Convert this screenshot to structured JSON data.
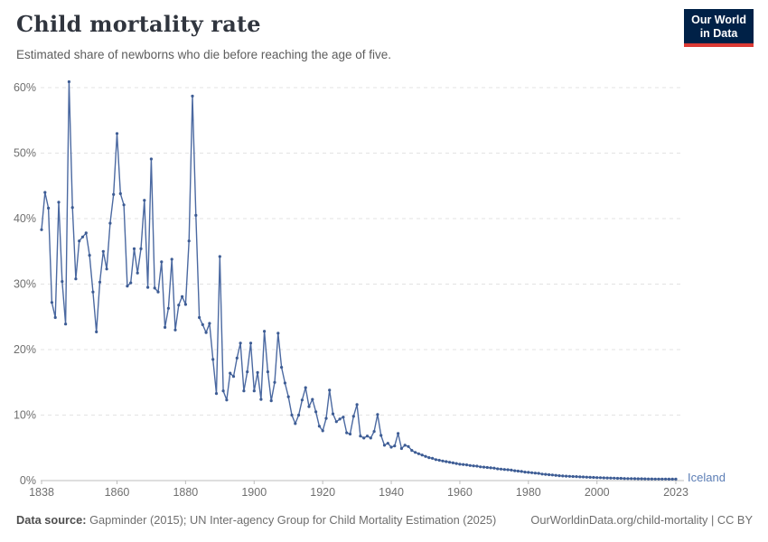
{
  "header": {
    "title": "Child mortality rate",
    "subtitle": "Estimated share of newborns who die before reaching the age of five."
  },
  "logo": {
    "line1": "Our World",
    "line2": "in Data"
  },
  "chart_data": {
    "type": "line",
    "title": "Child mortality rate",
    "xlabel": "",
    "ylabel": "share of newborns dying before age five (%)",
    "xlim": [
      1838,
      2023
    ],
    "ylim": [
      0,
      62
    ],
    "grid": "horizontal-dashed",
    "legend_position": "line-end-label",
    "y_ticks": [
      {
        "value": 0,
        "label": "0%"
      },
      {
        "value": 10,
        "label": "10%"
      },
      {
        "value": 20,
        "label": "20%"
      },
      {
        "value": 30,
        "label": "30%"
      },
      {
        "value": 40,
        "label": "40%"
      },
      {
        "value": 50,
        "label": "50%"
      },
      {
        "value": 60,
        "label": "60%"
      }
    ],
    "x_ticks": [
      {
        "value": 1838,
        "label": "1838"
      },
      {
        "value": 1860,
        "label": "1860"
      },
      {
        "value": 1880,
        "label": "1880"
      },
      {
        "value": 1900,
        "label": "1900"
      },
      {
        "value": 1920,
        "label": "1920"
      },
      {
        "value": 1940,
        "label": "1940"
      },
      {
        "value": 1960,
        "label": "1960"
      },
      {
        "value": 1980,
        "label": "1980"
      },
      {
        "value": 2000,
        "label": "2000"
      },
      {
        "value": 2023,
        "label": "2023"
      }
    ],
    "series": [
      {
        "name": "Iceland",
        "unit": "%",
        "color": "#4b69a1",
        "point_color": "#3d5c94",
        "start_year": 1838,
        "end_year": 2023,
        "values": [
          38.3,
          44.0,
          41.6,
          27.2,
          24.9,
          42.5,
          30.4,
          23.9,
          60.9,
          41.7,
          30.8,
          36.6,
          37.2,
          37.8,
          34.4,
          28.8,
          22.7,
          30.3,
          35.0,
          32.3,
          39.3,
          43.7,
          53.0,
          43.8,
          42.1,
          29.7,
          30.2,
          35.4,
          31.7,
          35.4,
          42.8,
          29.5,
          49.1,
          29.4,
          28.8,
          33.4,
          23.4,
          26.3,
          33.8,
          23.0,
          26.8,
          28.1,
          26.9,
          36.6,
          58.7,
          40.5,
          24.9,
          23.8,
          22.6,
          24.0,
          18.5,
          13.3,
          34.2,
          13.7,
          12.3,
          16.4,
          15.9,
          18.7,
          21.0,
          13.7,
          16.6,
          21.0,
          13.7,
          16.5,
          12.4,
          22.8,
          16.6,
          12.2,
          15.0,
          22.5,
          17.3,
          14.9,
          12.8,
          10.0,
          8.7,
          10.0,
          12.3,
          14.2,
          11.3,
          12.4,
          10.5,
          8.3,
          7.6,
          9.5,
          13.8,
          10.2,
          9.0,
          9.4,
          9.7,
          7.3,
          7.1,
          9.8,
          11.6,
          6.8,
          6.5,
          6.8,
          6.5,
          7.5,
          10.1,
          6.9,
          5.4,
          5.7,
          5.1,
          5.3,
          7.2,
          4.9,
          5.4,
          5.2,
          4.6,
          4.3,
          4.1,
          3.9,
          3.7,
          3.5,
          3.4,
          3.2,
          3.1,
          3.0,
          2.9,
          2.8,
          2.7,
          2.6,
          2.5,
          2.45,
          2.4,
          2.3,
          2.25,
          2.2,
          2.1,
          2.05,
          2.0,
          1.95,
          1.9,
          1.8,
          1.75,
          1.7,
          1.65,
          1.6,
          1.5,
          1.45,
          1.4,
          1.3,
          1.25,
          1.2,
          1.15,
          1.1,
          1.0,
          0.95,
          0.9,
          0.85,
          0.8,
          0.75,
          0.7,
          0.68,
          0.65,
          0.62,
          0.6,
          0.57,
          0.55,
          0.52,
          0.5,
          0.48,
          0.46,
          0.44,
          0.42,
          0.4,
          0.38,
          0.37,
          0.35,
          0.34,
          0.32,
          0.31,
          0.3,
          0.29,
          0.28,
          0.27,
          0.26,
          0.25,
          0.25,
          0.24,
          0.24,
          0.23,
          0.23,
          0.22,
          0.22,
          0.22
        ]
      }
    ]
  },
  "footer": {
    "source_label": "Data source:",
    "source_text": " Gapminder (2015); UN Inter-agency Group for Child Mortality Estimation (2025)",
    "link_text": "OurWorldinData.org/child-mortality | CC BY"
  },
  "colors": {
    "line": "#4b69a1",
    "point": "#3d5c94",
    "entity_label": "#5b7db5",
    "grid": "#e3e3e3",
    "axis": "#bcbcbc",
    "tick_label": "#6f6f6f",
    "logo_bg": "#002147",
    "logo_stripe": "#dc3a34"
  }
}
